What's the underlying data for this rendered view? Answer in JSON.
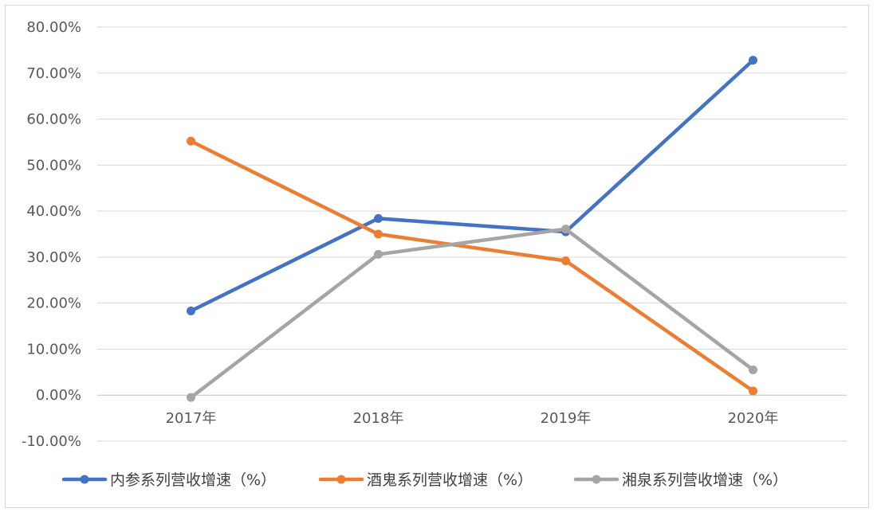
{
  "chart_data": {
    "type": "line",
    "categories": [
      "2017年",
      "2018年",
      "2019年",
      "2020年"
    ],
    "series": [
      {
        "name": "内参系列营收增速（%）",
        "color": "#4472C4",
        "values": [
          18.3,
          38.4,
          35.5,
          72.8
        ]
      },
      {
        "name": "酒鬼系列营收增速（%）",
        "color": "#ED7D31",
        "values": [
          55.2,
          35.0,
          29.2,
          0.9
        ]
      },
      {
        "name": "湘泉系列营收增速（%）",
        "color": "#A5A5A5",
        "values": [
          -0.5,
          30.6,
          36.1,
          5.5
        ]
      }
    ],
    "ylim": [
      -10,
      80
    ],
    "yticks": [
      -10,
      0,
      10,
      20,
      30,
      40,
      50,
      60,
      70,
      80
    ],
    "ytick_labels": [
      "-10.00%",
      "0.00%",
      "10.00%",
      "20.00%",
      "30.00%",
      "40.00%",
      "50.00%",
      "60.00%",
      "70.00%",
      "80.00%"
    ],
    "grid": true,
    "legend_position": "bottom"
  }
}
